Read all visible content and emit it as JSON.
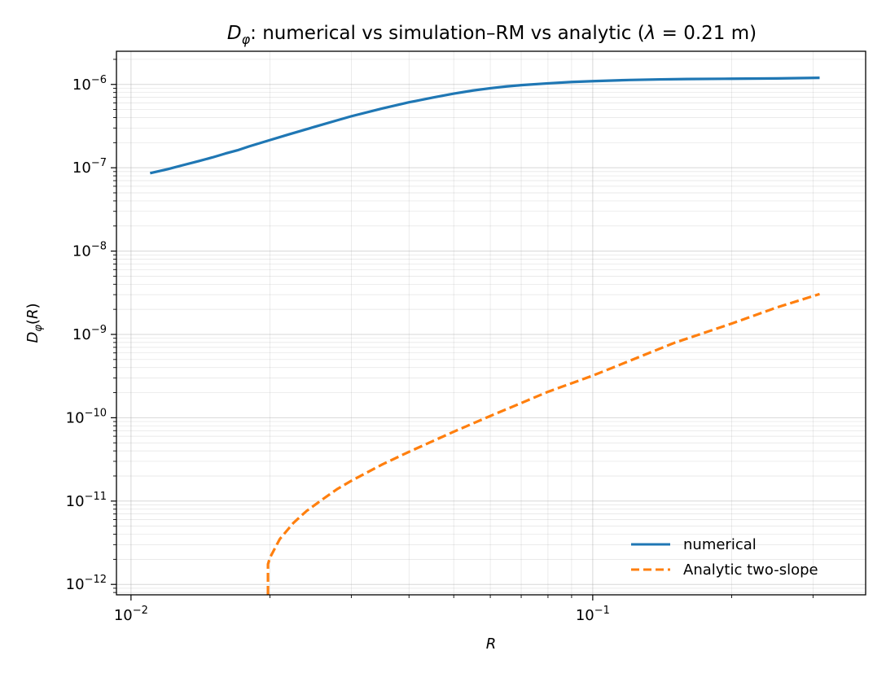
{
  "chart_data": {
    "type": "line",
    "title": "D_φ: numerical vs simulation–RM vs analytic  (λ = 0.21 m)",
    "xlabel": "R",
    "ylabel": "D_φ(R)",
    "xscale": "log",
    "yscale": "log",
    "xlim": [
      0.0093,
      0.39
    ],
    "ylim": [
      7.5e-13,
      2.5e-06
    ],
    "grid": true,
    "legend": "bottom-right",
    "xticks": [
      {
        "value": 0.01,
        "base": "10",
        "exp": "−2"
      },
      {
        "value": 0.1,
        "base": "10",
        "exp": "−1"
      }
    ],
    "yticks": [
      {
        "value": 1e-12,
        "base": "10",
        "exp": "−12"
      },
      {
        "value": 1e-11,
        "base": "10",
        "exp": "−11"
      },
      {
        "value": 1e-10,
        "base": "10",
        "exp": "−10"
      },
      {
        "value": 1e-09,
        "base": "10",
        "exp": "−9"
      },
      {
        "value": 1e-08,
        "base": "10",
        "exp": "−8"
      },
      {
        "value": 1e-07,
        "base": "10",
        "exp": "−7"
      },
      {
        "value": 1e-06,
        "base": "10",
        "exp": "−6"
      }
    ],
    "series": [
      {
        "name": "numerical",
        "color": "#1f77b4",
        "style": "solid",
        "x": [
          0.011,
          0.012,
          0.013,
          0.014,
          0.015,
          0.016,
          0.017,
          0.018,
          0.02,
          0.022,
          0.025,
          0.028,
          0.03,
          0.035,
          0.04,
          0.045,
          0.05,
          0.055,
          0.06,
          0.065,
          0.07,
          0.08,
          0.09,
          0.1,
          0.12,
          0.14,
          0.16,
          0.2,
          0.25,
          0.31
        ],
        "y": [
          8.6e-08,
          9.6e-08,
          1.08e-07,
          1.2e-07,
          1.33e-07,
          1.48e-07,
          1.62e-07,
          1.8e-07,
          2.15e-07,
          2.52e-07,
          3.1e-07,
          3.72e-07,
          4.15e-07,
          5.15e-07,
          6.1e-07,
          6.95e-07,
          7.75e-07,
          8.45e-07,
          9e-07,
          9.45e-07,
          9.8e-07,
          1.03e-06,
          1.07e-06,
          1.095e-06,
          1.13e-06,
          1.15e-06,
          1.16e-06,
          1.17e-06,
          1.18e-06,
          1.2e-06
        ]
      },
      {
        "name": "Analytic two-slope",
        "color": "#ff7f0e",
        "style": "dashed",
        "x": [
          0.0198,
          0.0198,
          0.0198,
          0.02,
          0.021,
          0.0225,
          0.024,
          0.026,
          0.028,
          0.03,
          0.035,
          0.04,
          0.05,
          0.06,
          0.07,
          0.08,
          0.1,
          0.12,
          0.15,
          0.2,
          0.25,
          0.31
        ],
        "y": [
          7.5e-13,
          1.3e-12,
          1.75e-12,
          2.1e-12,
          3.5e-12,
          5.5e-12,
          7.6e-12,
          1.05e-11,
          1.4e-11,
          1.75e-11,
          2.75e-11,
          3.9e-11,
          6.8e-11,
          1.05e-10,
          1.5e-10,
          2.05e-10,
          3.2e-10,
          4.8e-10,
          7.9e-10,
          1.35e-09,
          2.1e-09,
          3.05e-09
        ]
      }
    ]
  }
}
